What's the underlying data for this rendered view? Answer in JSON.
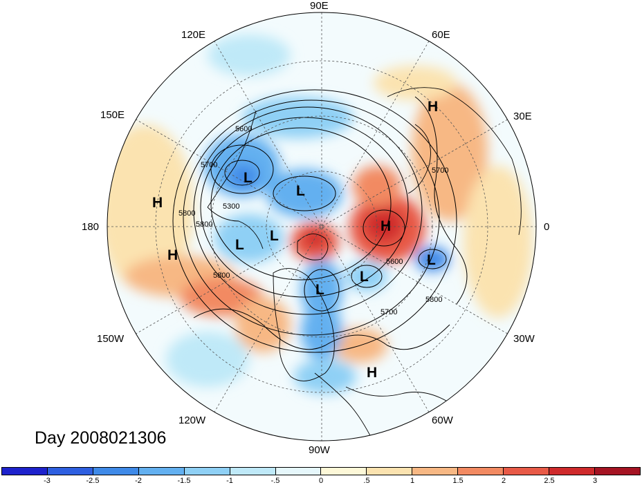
{
  "title": "Day 2008021306",
  "longitude_labels": [
    "90E",
    "60E",
    "30E",
    "0",
    "30W",
    "60W",
    "90W",
    "120W",
    "150W",
    "180",
    "150E",
    "120E"
  ],
  "contour_labels": [
    "5300",
    "5600",
    "5600",
    "5700",
    "5700",
    "5700",
    "5800",
    "5800",
    "5800",
    "5800"
  ],
  "pressure_centers": {
    "highs": [
      "H",
      "H",
      "H",
      "H",
      "H"
    ],
    "lows": [
      "L",
      "L",
      "L",
      "L",
      "L",
      "L",
      "L"
    ]
  },
  "colorbar": {
    "ticks": [
      "-3",
      "-2.5",
      "-2",
      "-1.5",
      "-1",
      "-.5",
      "0",
      ".5",
      "1",
      "1.5",
      "2",
      "2.5",
      "3"
    ],
    "colors": [
      "#1e22cc",
      "#2e5fe0",
      "#3f8ae8",
      "#63b0f0",
      "#8fd0f5",
      "#bfe9f8",
      "#e6f7fb",
      "#fdf8d8",
      "#fbe3b0",
      "#f7b884",
      "#f28a62",
      "#e85a47",
      "#cf2a2c",
      "#a51423"
    ]
  }
}
